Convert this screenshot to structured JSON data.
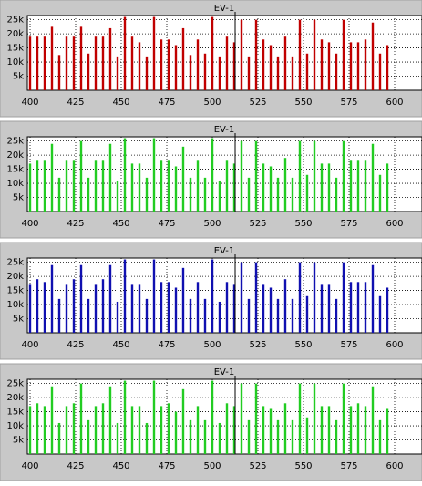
{
  "chart_data": [
    {
      "type": "bar",
      "title": "EV-1",
      "color": "#c00000",
      "cursor": 512.5,
      "x": [
        400,
        404,
        408,
        412,
        416,
        420,
        424,
        428,
        432,
        436,
        440,
        444,
        448,
        452,
        456,
        460,
        464,
        468,
        472,
        476,
        480,
        484,
        488,
        492,
        496,
        500,
        504,
        508,
        512,
        516,
        520,
        524,
        528,
        532,
        536,
        540,
        544,
        548,
        552,
        556,
        560,
        564,
        568,
        572,
        576,
        580,
        584,
        588,
        592,
        596
      ],
      "values": [
        19000,
        19000,
        19000,
        22500,
        12500,
        19000,
        19000,
        22500,
        13000,
        19000,
        19000,
        22000,
        12000,
        26000,
        19000,
        17000,
        12000,
        26000,
        18000,
        18000,
        16000,
        22000,
        12500,
        18000,
        13000,
        26000,
        12000,
        19000,
        17000,
        25000,
        12000,
        25000,
        18000,
        16000,
        12000,
        19000,
        12000,
        25000,
        13000,
        25000,
        18000,
        17000,
        13000,
        25000,
        17000,
        17000,
        18000,
        24000,
        13000,
        16000
      ],
      "xlim": [
        398.5,
        615
      ],
      "xticks": [
        400,
        425,
        450,
        475,
        500,
        525,
        550,
        575,
        600
      ],
      "ylim": [
        0,
        26500
      ],
      "yticks": [
        {
          "value": 5000,
          "label": "5k"
        },
        {
          "value": 10000,
          "label": "10k"
        },
        {
          "value": 15000,
          "label": "15k"
        },
        {
          "value": 20000,
          "label": "20k"
        },
        {
          "value": 25000,
          "label": "25k"
        }
      ],
      "grid": true
    },
    {
      "type": "bar",
      "title": "EV-1",
      "color": "#22cc22",
      "cursor": 512.5,
      "x": [
        400,
        404,
        408,
        412,
        416,
        420,
        424,
        428,
        432,
        436,
        440,
        444,
        448,
        452,
        456,
        460,
        464,
        468,
        472,
        476,
        480,
        484,
        488,
        492,
        496,
        500,
        504,
        508,
        512,
        516,
        520,
        524,
        528,
        532,
        536,
        540,
        544,
        548,
        552,
        556,
        560,
        564,
        568,
        572,
        576,
        580,
        584,
        588,
        592,
        596
      ],
      "values": [
        17000,
        18000,
        18000,
        24000,
        12000,
        18000,
        18000,
        25000,
        12000,
        18000,
        18000,
        24000,
        11000,
        26000,
        17000,
        17000,
        12000,
        26000,
        18000,
        18000,
        16000,
        23000,
        12000,
        18000,
        12000,
        26000,
        11000,
        18000,
        17000,
        25000,
        12000,
        25000,
        17000,
        16000,
        12000,
        19000,
        12000,
        25000,
        13000,
        25000,
        17000,
        17000,
        12000,
        25000,
        18000,
        18000,
        18000,
        24000,
        13000,
        17000
      ],
      "xlim": [
        398.5,
        615
      ],
      "xticks": [
        400,
        425,
        450,
        475,
        500,
        525,
        550,
        575,
        600
      ],
      "ylim": [
        0,
        26500
      ],
      "yticks": [
        {
          "value": 5000,
          "label": "5k"
        },
        {
          "value": 10000,
          "label": "10k"
        },
        {
          "value": 15000,
          "label": "15k"
        },
        {
          "value": 20000,
          "label": "20k"
        },
        {
          "value": 25000,
          "label": "25k"
        }
      ],
      "grid": true
    },
    {
      "type": "bar",
      "title": "EV-1",
      "color": "#1010b0",
      "cursor": 512.5,
      "x": [
        400,
        404,
        408,
        412,
        416,
        420,
        424,
        428,
        432,
        436,
        440,
        444,
        448,
        452,
        456,
        460,
        464,
        468,
        472,
        476,
        480,
        484,
        488,
        492,
        496,
        500,
        504,
        508,
        512,
        516,
        520,
        524,
        528,
        532,
        536,
        540,
        544,
        548,
        552,
        556,
        560,
        564,
        568,
        572,
        576,
        580,
        584,
        588,
        592,
        596
      ],
      "values": [
        17000,
        19000,
        18000,
        24000,
        12000,
        17000,
        19000,
        24000,
        12000,
        17000,
        19000,
        24000,
        11000,
        26000,
        17000,
        17000,
        12000,
        26000,
        18000,
        18000,
        16000,
        23000,
        12000,
        18000,
        12000,
        26000,
        11000,
        18000,
        17000,
        25000,
        12000,
        25000,
        17000,
        16000,
        12000,
        19000,
        12000,
        25000,
        13000,
        25000,
        17000,
        17000,
        12000,
        25000,
        18000,
        18000,
        18000,
        24000,
        13000,
        16000
      ],
      "xlim": [
        398.5,
        615
      ],
      "xticks": [
        400,
        425,
        450,
        475,
        500,
        525,
        550,
        575,
        600
      ],
      "ylim": [
        0,
        26500
      ],
      "yticks": [
        {
          "value": 5000,
          "label": "5k"
        },
        {
          "value": 10000,
          "label": "10k"
        },
        {
          "value": 15000,
          "label": "15k"
        },
        {
          "value": 20000,
          "label": "20k"
        },
        {
          "value": 25000,
          "label": "25k"
        }
      ],
      "grid": true
    },
    {
      "type": "bar",
      "title": "EV-1",
      "color": "#22cc22",
      "cursor": 512.5,
      "x": [
        400,
        404,
        408,
        412,
        416,
        420,
        424,
        428,
        432,
        436,
        440,
        444,
        448,
        452,
        456,
        460,
        464,
        468,
        472,
        476,
        480,
        484,
        488,
        492,
        496,
        500,
        504,
        508,
        512,
        516,
        520,
        524,
        528,
        532,
        536,
        540,
        544,
        548,
        552,
        556,
        560,
        564,
        568,
        572,
        576,
        580,
        584,
        588,
        592,
        596
      ],
      "values": [
        17000,
        18000,
        17000,
        24000,
        11000,
        17000,
        18000,
        25000,
        12000,
        17000,
        18000,
        24000,
        11000,
        26000,
        17000,
        17000,
        11000,
        26000,
        17000,
        18000,
        15000,
        23000,
        12000,
        17000,
        12000,
        26000,
        11000,
        18000,
        17000,
        25000,
        12000,
        25000,
        17000,
        16000,
        12000,
        18000,
        12000,
        25000,
        13000,
        25000,
        17000,
        17000,
        12000,
        25000,
        17000,
        18000,
        17000,
        24000,
        12000,
        16000
      ],
      "xlim": [
        398.5,
        615
      ],
      "xticks": [
        400,
        425,
        450,
        475,
        500,
        525,
        550,
        575,
        600
      ],
      "ylim": [
        0,
        26500
      ],
      "yticks": [
        {
          "value": 5000,
          "label": "5k"
        },
        {
          "value": 10000,
          "label": "10k"
        },
        {
          "value": 15000,
          "label": "15k"
        },
        {
          "value": 20000,
          "label": "20k"
        },
        {
          "value": 25000,
          "label": "25k"
        }
      ],
      "grid": true
    }
  ]
}
